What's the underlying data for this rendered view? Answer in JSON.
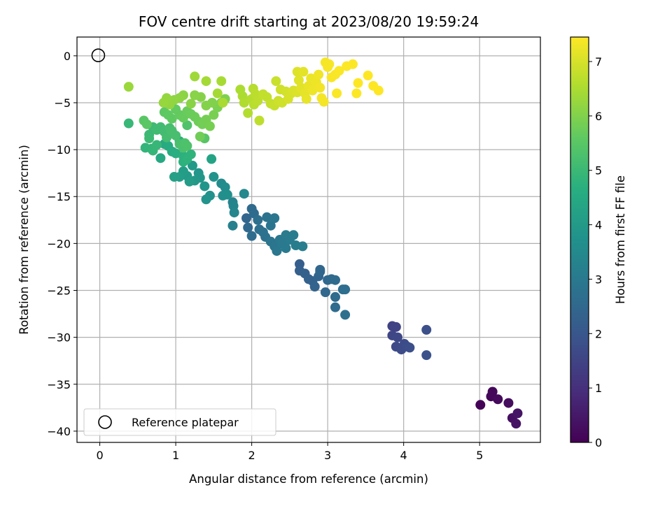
{
  "chart_data": {
    "type": "scatter",
    "title": "FOV centre drift starting at 2023/08/20 19:59:24",
    "xlabel": "Angular distance from reference (arcmin)",
    "ylabel": "Rotation from reference (arcmin)",
    "colorbar_label": "Hours from first FF file",
    "colormap": "viridis",
    "xlim": [
      -0.3,
      5.8
    ],
    "ylim": [
      -41.2,
      2.0
    ],
    "xticks": [
      0,
      1,
      2,
      3,
      4,
      5
    ],
    "yticks": [
      0,
      -5,
      -10,
      -15,
      -20,
      -25,
      -30,
      -35,
      -40
    ],
    "cticks": [
      0,
      1,
      2,
      3,
      4,
      5,
      6,
      7
    ],
    "clim": [
      0,
      7.45
    ],
    "grid": true,
    "legend": {
      "position": "lower-left",
      "label": "Reference platepar"
    },
    "reference_point": {
      "x": 0,
      "y": 0
    },
    "points": [
      {
        "x": 5.01,
        "y": -37.2,
        "h": 0.05
      },
      {
        "x": 5.15,
        "y": -36.3,
        "h": 0.1
      },
      {
        "x": 5.17,
        "y": -35.8,
        "h": 0.15
      },
      {
        "x": 5.24,
        "y": -36.6,
        "h": 0.2
      },
      {
        "x": 5.38,
        "y": -37.0,
        "h": 0.25
      },
      {
        "x": 5.43,
        "y": -38.6,
        "h": 0.3
      },
      {
        "x": 5.48,
        "y": -39.2,
        "h": 0.35
      },
      {
        "x": 5.5,
        "y": -38.1,
        "h": 0.4
      },
      {
        "x": 3.85,
        "y": -28.8,
        "h": 1.45
      },
      {
        "x": 3.9,
        "y": -28.9,
        "h": 1.5
      },
      {
        "x": 3.85,
        "y": -29.8,
        "h": 1.55
      },
      {
        "x": 3.92,
        "y": -30.0,
        "h": 1.6
      },
      {
        "x": 3.9,
        "y": -31.0,
        "h": 1.65
      },
      {
        "x": 3.97,
        "y": -31.3,
        "h": 1.7
      },
      {
        "x": 4.01,
        "y": -30.7,
        "h": 1.72
      },
      {
        "x": 4.05,
        "y": -31.0,
        "h": 1.75
      },
      {
        "x": 4.08,
        "y": -31.1,
        "h": 1.78
      },
      {
        "x": 4.3,
        "y": -29.2,
        "h": 1.82
      },
      {
        "x": 4.3,
        "y": -31.9,
        "h": 1.85
      },
      {
        "x": 2.63,
        "y": -22.2,
        "h": 2.2
      },
      {
        "x": 2.63,
        "y": -22.9,
        "h": 2.25
      },
      {
        "x": 2.7,
        "y": -23.2,
        "h": 2.28
      },
      {
        "x": 2.75,
        "y": -23.8,
        "h": 2.32
      },
      {
        "x": 2.8,
        "y": -24.0,
        "h": 2.35
      },
      {
        "x": 2.83,
        "y": -24.6,
        "h": 2.38
      },
      {
        "x": 2.88,
        "y": -23.5,
        "h": 2.42
      },
      {
        "x": 2.9,
        "y": -22.8,
        "h": 2.45
      },
      {
        "x": 2.9,
        "y": -23.0,
        "h": 2.48
      },
      {
        "x": 2.97,
        "y": -25.2,
        "h": 2.5
      },
      {
        "x": 3.0,
        "y": -23.9,
        "h": 2.52
      },
      {
        "x": 3.05,
        "y": -23.8,
        "h": 2.55
      },
      {
        "x": 3.1,
        "y": -23.9,
        "h": 2.58
      },
      {
        "x": 3.1,
        "y": -25.7,
        "h": 2.6
      },
      {
        "x": 3.1,
        "y": -26.8,
        "h": 2.62
      },
      {
        "x": 3.2,
        "y": -24.9,
        "h": 2.65
      },
      {
        "x": 3.23,
        "y": -24.9,
        "h": 2.68
      },
      {
        "x": 3.23,
        "y": -27.6,
        "h": 2.7
      },
      {
        "x": 1.93,
        "y": -17.3,
        "h": 2.45
      },
      {
        "x": 1.95,
        "y": -18.3,
        "h": 2.5
      },
      {
        "x": 2.0,
        "y": -16.3,
        "h": 2.55
      },
      {
        "x": 2.03,
        "y": -16.8,
        "h": 2.6
      },
      {
        "x": 2.0,
        "y": -19.2,
        "h": 2.65
      },
      {
        "x": 2.08,
        "y": -17.5,
        "h": 2.7
      },
      {
        "x": 2.1,
        "y": -18.5,
        "h": 2.72
      },
      {
        "x": 2.15,
        "y": -18.8,
        "h": 2.78
      },
      {
        "x": 2.18,
        "y": -19.3,
        "h": 2.8
      },
      {
        "x": 2.2,
        "y": -17.2,
        "h": 2.82
      },
      {
        "x": 2.25,
        "y": -18.1,
        "h": 2.85
      },
      {
        "x": 2.25,
        "y": -19.8,
        "h": 2.88
      },
      {
        "x": 2.3,
        "y": -17.3,
        "h": 2.9
      },
      {
        "x": 2.3,
        "y": -20.3,
        "h": 2.92
      },
      {
        "x": 2.33,
        "y": -20.8,
        "h": 2.95
      },
      {
        "x": 2.37,
        "y": -19.6,
        "h": 2.97
      },
      {
        "x": 2.4,
        "y": -20.0,
        "h": 3.0
      },
      {
        "x": 2.45,
        "y": -20.5,
        "h": 3.02
      },
      {
        "x": 2.45,
        "y": -19.1,
        "h": 3.05
      },
      {
        "x": 2.5,
        "y": -19.6,
        "h": 3.07
      },
      {
        "x": 2.55,
        "y": -19.1,
        "h": 3.1
      },
      {
        "x": 2.58,
        "y": -20.2,
        "h": 3.12
      },
      {
        "x": 2.67,
        "y": -20.3,
        "h": 3.15
      },
      {
        "x": 1.75,
        "y": -18.1,
        "h": 3.2
      },
      {
        "x": 1.75,
        "y": -15.6,
        "h": 3.3
      },
      {
        "x": 1.76,
        "y": -16.0,
        "h": 3.35
      },
      {
        "x": 1.77,
        "y": -16.7,
        "h": 3.4
      },
      {
        "x": 1.9,
        "y": -14.7,
        "h": 3.45
      },
      {
        "x": 1.6,
        "y": -13.6,
        "h": 3.55
      },
      {
        "x": 1.65,
        "y": -14.0,
        "h": 3.6
      },
      {
        "x": 1.62,
        "y": -14.9,
        "h": 3.65
      },
      {
        "x": 1.68,
        "y": -14.8,
        "h": 3.7
      },
      {
        "x": 1.45,
        "y": -14.9,
        "h": 3.75
      },
      {
        "x": 1.5,
        "y": -12.9,
        "h": 3.8
      },
      {
        "x": 1.4,
        "y": -15.3,
        "h": 3.82
      },
      {
        "x": 1.38,
        "y": -13.9,
        "h": 3.85
      },
      {
        "x": 1.3,
        "y": -12.5,
        "h": 3.9
      },
      {
        "x": 1.32,
        "y": -13.0,
        "h": 3.92
      },
      {
        "x": 1.25,
        "y": -13.3,
        "h": 3.95
      },
      {
        "x": 1.22,
        "y": -11.7,
        "h": 4.0
      },
      {
        "x": 1.15,
        "y": -12.8,
        "h": 4.05
      },
      {
        "x": 1.18,
        "y": -13.4,
        "h": 4.08
      },
      {
        "x": 1.1,
        "y": -12.3,
        "h": 4.1
      },
      {
        "x": 1.05,
        "y": -12.9,
        "h": 4.15
      },
      {
        "x": 0.98,
        "y": -12.9,
        "h": 4.2
      },
      {
        "x": 1.47,
        "y": -11.0,
        "h": 4.3
      },
      {
        "x": 0.8,
        "y": -10.9,
        "h": 4.45
      },
      {
        "x": 0.85,
        "y": -9.4,
        "h": 4.5
      },
      {
        "x": 0.9,
        "y": -9.6,
        "h": 4.55
      },
      {
        "x": 0.95,
        "y": -10.2,
        "h": 4.6
      },
      {
        "x": 1.0,
        "y": -10.4,
        "h": 4.65
      },
      {
        "x": 1.05,
        "y": -9.1,
        "h": 4.7
      },
      {
        "x": 1.1,
        "y": -10.7,
        "h": 4.72
      },
      {
        "x": 1.1,
        "y": -11.3,
        "h": 4.75
      },
      {
        "x": 1.15,
        "y": -11.0,
        "h": 4.78
      },
      {
        "x": 1.2,
        "y": -10.5,
        "h": 4.8
      },
      {
        "x": 0.6,
        "y": -9.8,
        "h": 4.85
      },
      {
        "x": 0.68,
        "y": -9.9,
        "h": 4.88
      },
      {
        "x": 0.7,
        "y": -10.1,
        "h": 4.9
      },
      {
        "x": 0.75,
        "y": -9.5,
        "h": 4.92
      },
      {
        "x": 0.38,
        "y": -7.2,
        "h": 4.95
      },
      {
        "x": 0.65,
        "y": -8.4,
        "h": 5.0
      },
      {
        "x": 0.65,
        "y": -8.8,
        "h": 5.02
      },
      {
        "x": 0.7,
        "y": -7.6,
        "h": 5.05
      },
      {
        "x": 0.75,
        "y": -7.9,
        "h": 5.08
      },
      {
        "x": 0.8,
        "y": -7.6,
        "h": 5.1
      },
      {
        "x": 0.85,
        "y": -8.1,
        "h": 5.12
      },
      {
        "x": 0.88,
        "y": -8.7,
        "h": 5.15
      },
      {
        "x": 0.92,
        "y": -7.7,
        "h": 5.18
      },
      {
        "x": 0.95,
        "y": -8.0,
        "h": 5.2
      },
      {
        "x": 1.0,
        "y": -8.5,
        "h": 5.22
      },
      {
        "x": 1.05,
        "y": -9.4,
        "h": 5.25
      },
      {
        "x": 1.1,
        "y": -9.8,
        "h": 5.28
      },
      {
        "x": 1.12,
        "y": -9.3,
        "h": 5.3
      },
      {
        "x": 1.15,
        "y": -9.6,
        "h": 5.32
      },
      {
        "x": 1.15,
        "y": -7.4,
        "h": 5.35
      },
      {
        "x": 1.38,
        "y": -8.8,
        "h": 5.45
      },
      {
        "x": 0.58,
        "y": -6.9,
        "h": 5.5
      },
      {
        "x": 0.62,
        "y": -7.3,
        "h": 5.52
      },
      {
        "x": 0.85,
        "y": -6.0,
        "h": 5.55
      },
      {
        "x": 0.9,
        "y": -6.3,
        "h": 5.58
      },
      {
        "x": 0.95,
        "y": -6.7,
        "h": 5.6
      },
      {
        "x": 1.0,
        "y": -5.7,
        "h": 5.62
      },
      {
        "x": 1.05,
        "y": -6.3,
        "h": 5.65
      },
      {
        "x": 1.1,
        "y": -6.6,
        "h": 5.68
      },
      {
        "x": 1.15,
        "y": -5.9,
        "h": 5.7
      },
      {
        "x": 1.2,
        "y": -6.2,
        "h": 5.72
      },
      {
        "x": 1.25,
        "y": -6.5,
        "h": 5.75
      },
      {
        "x": 1.3,
        "y": -7.0,
        "h": 5.78
      },
      {
        "x": 1.32,
        "y": -8.6,
        "h": 5.8
      },
      {
        "x": 1.35,
        "y": -7.3,
        "h": 5.82
      },
      {
        "x": 1.4,
        "y": -6.8,
        "h": 5.85
      },
      {
        "x": 1.45,
        "y": -7.5,
        "h": 5.88
      },
      {
        "x": 1.5,
        "y": -6.3,
        "h": 5.9
      },
      {
        "x": 1.55,
        "y": -5.5,
        "h": 5.92
      },
      {
        "x": 1.6,
        "y": -5.0,
        "h": 5.95
      },
      {
        "x": 1.65,
        "y": -4.6,
        "h": 5.98
      },
      {
        "x": 1.48,
        "y": -5.0,
        "h": 6.0
      },
      {
        "x": 1.4,
        "y": -5.3,
        "h": 6.02
      },
      {
        "x": 1.33,
        "y": -4.4,
        "h": 6.05
      },
      {
        "x": 1.25,
        "y": -4.2,
        "h": 6.08
      },
      {
        "x": 1.2,
        "y": -5.1,
        "h": 6.1
      },
      {
        "x": 1.1,
        "y": -4.2,
        "h": 6.12
      },
      {
        "x": 1.05,
        "y": -4.5,
        "h": 6.15
      },
      {
        "x": 0.98,
        "y": -4.7,
        "h": 6.18
      },
      {
        "x": 0.92,
        "y": -5.2,
        "h": 6.2
      },
      {
        "x": 0.88,
        "y": -4.5,
        "h": 6.22
      },
      {
        "x": 0.84,
        "y": -5.0,
        "h": 6.25
      },
      {
        "x": 0.38,
        "y": -3.3,
        "h": 6.3
      },
      {
        "x": 1.25,
        "y": -2.2,
        "h": 6.35
      },
      {
        "x": 1.4,
        "y": -2.7,
        "h": 6.4
      },
      {
        "x": 1.55,
        "y": -4.0,
        "h": 6.42
      },
      {
        "x": 1.6,
        "y": -2.7,
        "h": 6.45
      },
      {
        "x": 1.62,
        "y": -5.0,
        "h": 6.48
      },
      {
        "x": 1.85,
        "y": -3.6,
        "h": 6.5
      },
      {
        "x": 1.88,
        "y": -4.3,
        "h": 6.52
      },
      {
        "x": 1.9,
        "y": -5.0,
        "h": 6.55
      },
      {
        "x": 1.95,
        "y": -6.1,
        "h": 6.58
      },
      {
        "x": 2.0,
        "y": -4.6,
        "h": 6.6
      },
      {
        "x": 2.02,
        "y": -3.5,
        "h": 6.62
      },
      {
        "x": 2.03,
        "y": -5.2,
        "h": 6.65
      },
      {
        "x": 2.05,
        "y": -4.1,
        "h": 6.68
      },
      {
        "x": 2.08,
        "y": -4.8,
        "h": 6.7
      },
      {
        "x": 2.1,
        "y": -6.9,
        "h": 6.72
      },
      {
        "x": 2.15,
        "y": -4.1,
        "h": 6.75
      },
      {
        "x": 2.2,
        "y": -4.4,
        "h": 6.78
      },
      {
        "x": 2.25,
        "y": -5.1,
        "h": 6.8
      },
      {
        "x": 2.3,
        "y": -5.3,
        "h": 6.82
      },
      {
        "x": 2.32,
        "y": -2.7,
        "h": 6.85
      },
      {
        "x": 2.35,
        "y": -4.8,
        "h": 6.88
      },
      {
        "x": 2.4,
        "y": -5.0,
        "h": 6.9
      },
      {
        "x": 2.38,
        "y": -3.6,
        "h": 6.92
      },
      {
        "x": 2.45,
        "y": -3.8,
        "h": 6.95
      },
      {
        "x": 2.48,
        "y": -4.6,
        "h": 6.98
      },
      {
        "x": 2.52,
        "y": -4.0,
        "h": 7.0
      },
      {
        "x": 2.55,
        "y": -3.7,
        "h": 7.02
      },
      {
        "x": 2.6,
        "y": -3.9,
        "h": 7.05
      },
      {
        "x": 2.6,
        "y": -1.7,
        "h": 7.08
      },
      {
        "x": 2.62,
        "y": -2.6,
        "h": 7.1
      },
      {
        "x": 2.65,
        "y": -3.4,
        "h": 7.12
      },
      {
        "x": 2.68,
        "y": -1.7,
        "h": 7.15
      },
      {
        "x": 2.7,
        "y": -4.0,
        "h": 7.18
      },
      {
        "x": 2.72,
        "y": -4.6,
        "h": 7.2
      },
      {
        "x": 2.75,
        "y": -3.2,
        "h": 7.22
      },
      {
        "x": 2.78,
        "y": -2.4,
        "h": 7.24
      },
      {
        "x": 2.8,
        "y": -3.7,
        "h": 7.26
      },
      {
        "x": 2.85,
        "y": -2.8,
        "h": 7.28
      },
      {
        "x": 2.88,
        "y": -2.0,
        "h": 7.3
      },
      {
        "x": 2.9,
        "y": -3.4,
        "h": 7.32
      },
      {
        "x": 2.92,
        "y": -4.5,
        "h": 7.34
      },
      {
        "x": 2.95,
        "y": -4.9,
        "h": 7.35
      },
      {
        "x": 2.97,
        "y": -0.7,
        "h": 7.36
      },
      {
        "x": 3.0,
        "y": -1.2,
        "h": 7.37
      },
      {
        "x": 3.02,
        "y": -0.9,
        "h": 7.38
      },
      {
        "x": 3.05,
        "y": -2.3,
        "h": 7.39
      },
      {
        "x": 3.1,
        "y": -2.0,
        "h": 7.4
      },
      {
        "x": 3.12,
        "y": -4.0,
        "h": 7.41
      },
      {
        "x": 3.15,
        "y": -1.6,
        "h": 7.42
      },
      {
        "x": 3.25,
        "y": -1.1,
        "h": 7.43
      },
      {
        "x": 3.33,
        "y": -0.9,
        "h": 7.44
      },
      {
        "x": 3.38,
        "y": -4.0,
        "h": 7.44
      },
      {
        "x": 3.4,
        "y": -2.9,
        "h": 7.45
      },
      {
        "x": 3.53,
        "y": -2.1,
        "h": 7.45
      },
      {
        "x": 3.6,
        "y": -3.2,
        "h": 7.45
      },
      {
        "x": 3.67,
        "y": -3.7,
        "h": 7.45
      }
    ]
  }
}
